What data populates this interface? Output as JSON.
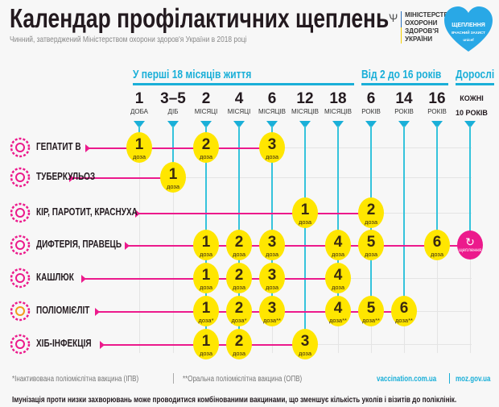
{
  "header": {
    "title": "Календар профілактичних щеплень",
    "subtitle": "Чинний, затверджений Міністерством охорони здоров'я України в 2018 році",
    "ministry_logo": "МІНІСТЕРСТВО ОХОРОНИ ЗДОРОВ'Я УКРАЇНИ",
    "heart_logo": {
      "title": "ЩЕПЛЕННЯ",
      "subtitle": "ВЧАСНИЙ ЗАХИСТ",
      "brand": "unicef"
    }
  },
  "groups": [
    {
      "label": "У перші 18 місяців життя"
    },
    {
      "label": "Від 2 до 16 років"
    },
    {
      "label": "Дорослі"
    }
  ],
  "columns": [
    {
      "num": "1",
      "unit": "ДОБА"
    },
    {
      "num": "3–5",
      "unit": "ДІБ"
    },
    {
      "num": "2",
      "unit": "МІСЯЦІ"
    },
    {
      "num": "4",
      "unit": "МІСЯЦІ"
    },
    {
      "num": "6",
      "unit": "МІСЯЦІВ"
    },
    {
      "num": "12",
      "unit": "МІСЯЦІВ"
    },
    {
      "num": "18",
      "unit": "МІСЯЦІВ"
    },
    {
      "num": "6",
      "unit": "РОКІВ"
    },
    {
      "num": "14",
      "unit": "РОКІВ"
    },
    {
      "num": "16",
      "unit": "РОКІВ"
    },
    {
      "num": "",
      "unit": "КОЖНІ 10 РОКІВ"
    }
  ],
  "dose_word": "доза",
  "adult_label": "щеплення",
  "colors": {
    "accent": "#1aafd8",
    "dose": "#ffe600",
    "line": "#ec1a8c"
  },
  "rows": [
    {
      "name": "ГЕПАТИТ В",
      "icon": "hepatitis-virus-icon",
      "doses": [
        {
          "col": 0,
          "n": "1"
        },
        {
          "col": 2,
          "n": "2"
        },
        {
          "col": 4,
          "n": "3"
        }
      ]
    },
    {
      "name": "ТУБЕРКУЛЬОЗ",
      "icon": "tuberculosis-bacteria-icon",
      "doses": [
        {
          "col": 1,
          "n": "1"
        }
      ]
    },
    {
      "name": "КІР, ПАРОТИТ, КРАСНУХА",
      "icon": "measles-virus-icon",
      "doses": [
        {
          "col": 5,
          "n": "1"
        },
        {
          "col": 7,
          "n": "2"
        }
      ]
    },
    {
      "name": "ДИФТЕРІЯ, ПРАВЕЦЬ",
      "icon": "diphtheria-bacteria-icon",
      "doses": [
        {
          "col": 2,
          "n": "1"
        },
        {
          "col": 3,
          "n": "2"
        },
        {
          "col": 4,
          "n": "3"
        },
        {
          "col": 6,
          "n": "4"
        },
        {
          "col": 7,
          "n": "5"
        },
        {
          "col": 9,
          "n": "6"
        }
      ],
      "adult": true
    },
    {
      "name": "КАШЛЮК",
      "icon": "pertussis-bacteria-icon",
      "doses": [
        {
          "col": 2,
          "n": "1"
        },
        {
          "col": 3,
          "n": "2"
        },
        {
          "col": 4,
          "n": "3"
        },
        {
          "col": 6,
          "n": "4"
        }
      ]
    },
    {
      "name": "ПОЛІОМІЄЛІТ",
      "icon": "polio-virus-icon",
      "doses": [
        {
          "col": 2,
          "n": "1",
          "mark": "*"
        },
        {
          "col": 3,
          "n": "2",
          "mark": "*"
        },
        {
          "col": 4,
          "n": "3",
          "mark": "**"
        },
        {
          "col": 6,
          "n": "4",
          "mark": "**"
        },
        {
          "col": 7,
          "n": "5",
          "mark": "**"
        },
        {
          "col": 8,
          "n": "6",
          "mark": "**"
        }
      ]
    },
    {
      "name": "ХІБ-ІНФЕКЦІЯ",
      "icon": "hib-bacteria-icon",
      "doses": [
        {
          "col": 2,
          "n": "1"
        },
        {
          "col": 3,
          "n": "2"
        },
        {
          "col": 5,
          "n": "3"
        }
      ]
    }
  ],
  "footer": {
    "note_ipv": "*Інактивована поліомієлітна вакцина (ІПВ)",
    "note_opv": "**Оральна поліомієлітна вакцина (ОПВ)",
    "link1": "vaccination.com.ua",
    "link2": "moz.gov.ua",
    "bottom": "Імунізація проти низки захворювань може проводитися комбінованими вакцинами, що зменшує кількість уколів і візитів до поліклінік."
  }
}
